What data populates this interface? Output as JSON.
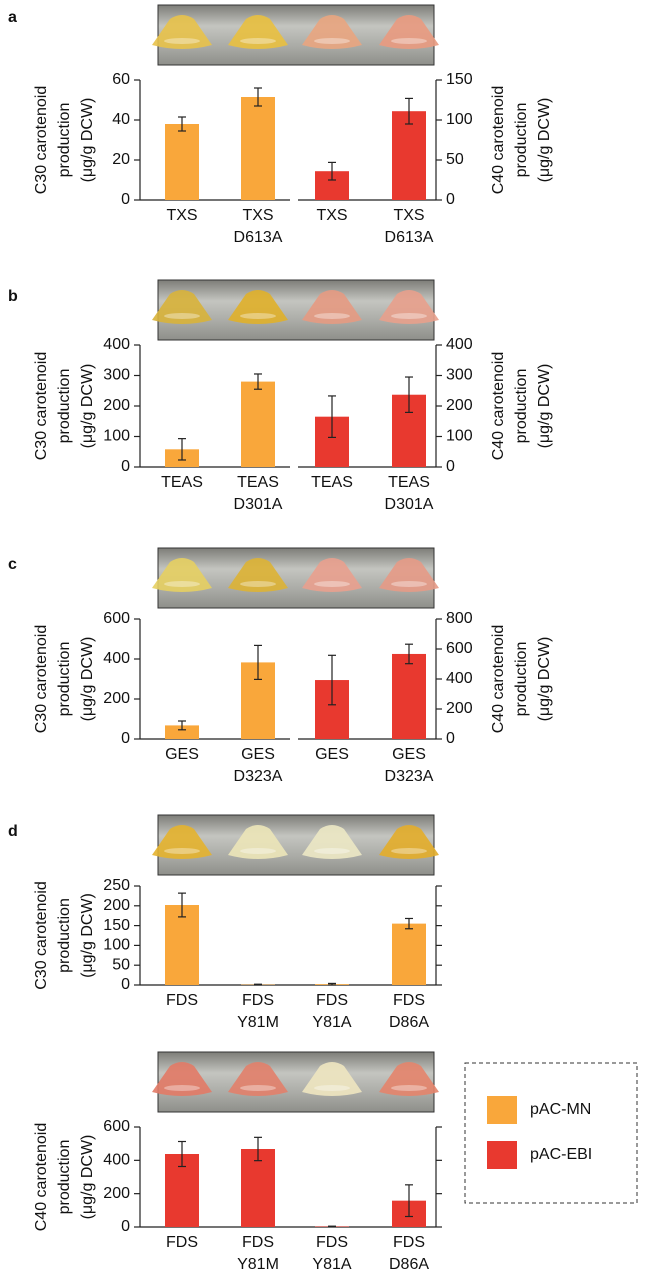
{
  "chart_data": [
    {
      "type": "bar",
      "panel": "a",
      "ylabel": [
        "C30 carotenoid",
        "production",
        "(μg/g DCW)"
      ],
      "y2label": [
        "C40 carotenoid",
        "production",
        "(μg/g DCW)"
      ],
      "categories": [
        [
          "TXS"
        ],
        [
          "TXS",
          "D613A"
        ],
        [
          "TXS"
        ],
        [
          "TXS",
          "D613A"
        ]
      ],
      "ylim": [
        0,
        60
      ],
      "yticks": [
        0,
        20,
        40,
        60
      ],
      "y2lim": [
        0,
        150
      ],
      "y2ticks": [
        0,
        50,
        100,
        150
      ],
      "split_axis": true,
      "series": [
        {
          "color": "#f9a73b",
          "values": [
            38,
            51.5,
            null,
            null
          ],
          "errors": [
            3.5,
            4.5,
            null,
            null
          ]
        },
        {
          "color": "#e8392f",
          "axis": "y2",
          "values": [
            null,
            null,
            36,
            111
          ],
          "errors": [
            null,
            null,
            11,
            16
          ]
        }
      ]
    },
    {
      "type": "bar",
      "panel": "b",
      "ylabel": [
        "C30 carotenoid",
        "production",
        "(μg/g DCW)"
      ],
      "y2label": [
        "C40 carotenoid",
        "production",
        "(μg/g DCW)"
      ],
      "categories": [
        [
          "TEAS"
        ],
        [
          "TEAS",
          "D301A"
        ],
        [
          "TEAS"
        ],
        [
          "TEAS",
          "D301A"
        ]
      ],
      "ylim": [
        0,
        400
      ],
      "yticks": [
        0,
        100,
        200,
        300,
        400
      ],
      "y2lim": [
        0,
        400
      ],
      "y2ticks": [
        0,
        100,
        200,
        300,
        400
      ],
      "split_axis": true,
      "series": [
        {
          "color": "#f9a73b",
          "values": [
            58,
            280,
            null,
            null
          ],
          "errors": [
            35,
            25,
            null,
            null
          ]
        },
        {
          "color": "#e8392f",
          "axis": "y2",
          "values": [
            null,
            null,
            165,
            237
          ],
          "errors": [
            null,
            null,
            68,
            58
          ]
        }
      ]
    },
    {
      "type": "bar",
      "panel": "c",
      "ylabel": [
        "C30 carotenoid",
        "production",
        "(μg/g DCW)"
      ],
      "y2label": [
        "C40 carotenoid",
        "production",
        "(μg/g DCW)"
      ],
      "categories": [
        [
          "GES"
        ],
        [
          "GES",
          "D323A"
        ],
        [
          "GES"
        ],
        [
          "GES",
          "D323A"
        ]
      ],
      "ylim": [
        0,
        600
      ],
      "yticks": [
        0,
        200,
        400,
        600
      ],
      "y2lim": [
        0,
        800
      ],
      "y2ticks": [
        0,
        200,
        400,
        600,
        800
      ],
      "split_axis": true,
      "series": [
        {
          "color": "#f9a73b",
          "values": [
            68,
            383,
            null,
            null
          ],
          "errors": [
            22,
            85,
            null,
            null
          ]
        },
        {
          "color": "#e8392f",
          "axis": "y2",
          "values": [
            null,
            null,
            393,
            567
          ],
          "errors": [
            null,
            null,
            165,
            65
          ]
        }
      ]
    },
    {
      "type": "bar",
      "panel": "d",
      "ylabel": [
        "C30 carotenoid",
        "production",
        "(μg/g DCW)"
      ],
      "categories": [
        [
          "FDS"
        ],
        [
          "FDS",
          "Y81M"
        ],
        [
          "FDS",
          "Y81A"
        ],
        [
          "FDS",
          "D86A"
        ]
      ],
      "ylim": [
        0,
        250
      ],
      "yticks": [
        0,
        50,
        100,
        150,
        200,
        250
      ],
      "mirror_ticks": true,
      "series": [
        {
          "color": "#f9a73b",
          "values": [
            202,
            1,
            2,
            155
          ],
          "errors": [
            30,
            1,
            2,
            13
          ]
        }
      ]
    },
    {
      "type": "bar",
      "ylabel": [
        "C40 carotenoid",
        "production",
        "(μg/g DCW)"
      ],
      "categories": [
        [
          "FDS"
        ],
        [
          "FDS",
          "Y81M"
        ],
        [
          "FDS",
          "Y81A"
        ],
        [
          "FDS",
          "D86A"
        ]
      ],
      "ylim": [
        0,
        600
      ],
      "yticks": [
        0,
        200,
        400,
        600
      ],
      "mirror_ticks": true,
      "series": [
        {
          "color": "#e8392f",
          "values": [
            438,
            468,
            3,
            158
          ],
          "errors": [
            75,
            70,
            2,
            95
          ]
        }
      ]
    }
  ],
  "legend": [
    {
      "name": "pAC-MN",
      "color": "#f9a73b"
    },
    {
      "name": "pAC-EBI",
      "color": "#e8392f"
    }
  ]
}
